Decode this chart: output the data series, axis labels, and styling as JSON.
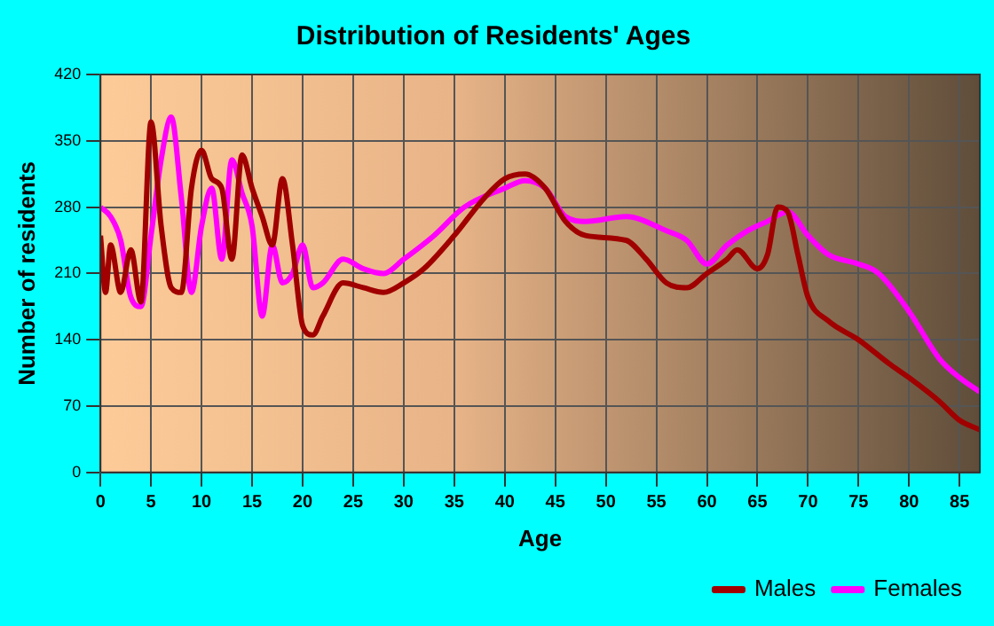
{
  "chart_data": {
    "type": "line",
    "title": "Distribution of Residents' Ages",
    "xlabel": "Age",
    "ylabel": "Number of residents",
    "xlim": [
      0,
      87
    ],
    "xticks": [
      0,
      5,
      10,
      15,
      20,
      25,
      30,
      35,
      40,
      45,
      50,
      55,
      60,
      65,
      70,
      75,
      80,
      85
    ],
    "ylim": [
      0,
      420
    ],
    "yticks": [
      0,
      70,
      140,
      210,
      280,
      350,
      420
    ],
    "grid": true,
    "legend": "bottom right",
    "marker": "none",
    "line_style": "solid",
    "series": [
      {
        "name": "Males",
        "color": "#a00000",
        "x": [
          0,
          0.5,
          1,
          2,
          3,
          4,
          5,
          6,
          7,
          8,
          9,
          10,
          11,
          12,
          13,
          14,
          15,
          16,
          17,
          18,
          19,
          20,
          21,
          22,
          24,
          26,
          28,
          30,
          32,
          35,
          38,
          40,
          42,
          44,
          46,
          48,
          52,
          54,
          56,
          58,
          60,
          62,
          63,
          65,
          66,
          67,
          68,
          69,
          70,
          72,
          75,
          78,
          80,
          83,
          85,
          87
        ],
        "values": [
          250,
          190,
          240,
          190,
          235,
          180,
          370,
          260,
          195,
          190,
          300,
          340,
          310,
          300,
          225,
          335,
          300,
          270,
          240,
          310,
          240,
          155,
          145,
          165,
          200,
          195,
          190,
          200,
          215,
          250,
          290,
          310,
          315,
          300,
          265,
          250,
          245,
          225,
          200,
          195,
          210,
          225,
          235,
          215,
          230,
          280,
          275,
          230,
          185,
          160,
          140,
          115,
          100,
          75,
          55,
          45
        ]
      },
      {
        "name": "Females",
        "color": "#ff00ff",
        "x": [
          0,
          1,
          2,
          3,
          4,
          5,
          6,
          7,
          8,
          9,
          10,
          11,
          12,
          13,
          14,
          15,
          16,
          17,
          18,
          19,
          20,
          21,
          22,
          24,
          26,
          28,
          30,
          33,
          36,
          40,
          42,
          44,
          46,
          48,
          52,
          56,
          58,
          60,
          62,
          64,
          66,
          68,
          70,
          72,
          75,
          77,
          80,
          83,
          85,
          87
        ],
        "values": [
          280,
          270,
          245,
          185,
          175,
          250,
          330,
          375,
          290,
          190,
          260,
          300,
          225,
          330,
          295,
          260,
          165,
          240,
          200,
          210,
          240,
          195,
          200,
          225,
          215,
          210,
          225,
          250,
          280,
          300,
          308,
          300,
          270,
          265,
          270,
          255,
          245,
          220,
          240,
          255,
          265,
          275,
          250,
          230,
          220,
          210,
          170,
          120,
          100,
          85
        ]
      }
    ]
  }
}
